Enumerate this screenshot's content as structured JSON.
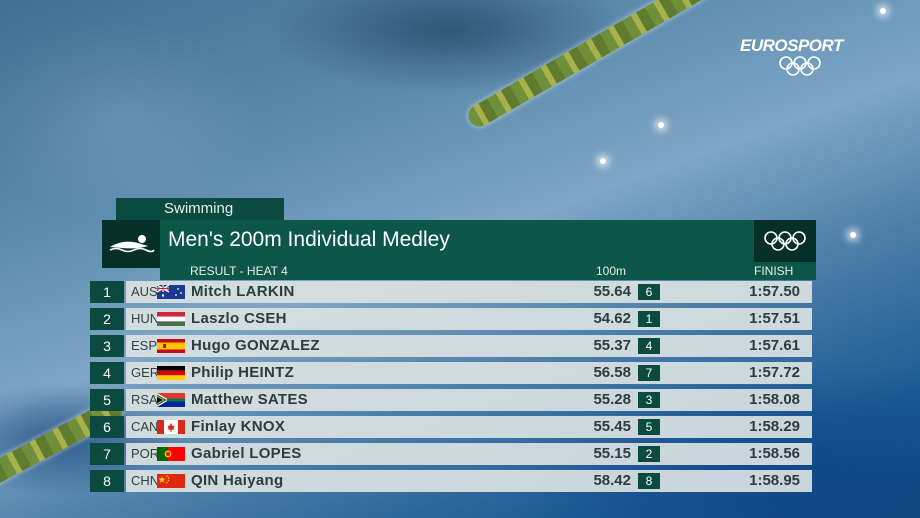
{
  "broadcaster": {
    "logo_text": "EUROSPORT"
  },
  "graphic": {
    "category": "Swimming",
    "title": "Men's 200m Individual Medley",
    "subtitle": "RESULT - HEAT 4",
    "split_header": "100m",
    "finish_header": "FINISH",
    "icons": [
      "swimmer-icon",
      "olympic-rings-icon"
    ]
  },
  "results": [
    {
      "rank": "1",
      "code": "AUS",
      "name": "Mitch LARKIN",
      "split": "55.64",
      "split_pos": "6",
      "finish": "1:57.50"
    },
    {
      "rank": "2",
      "code": "HUN",
      "name": "Laszlo CSEH",
      "split": "54.62",
      "split_pos": "1",
      "finish": "1:57.51"
    },
    {
      "rank": "3",
      "code": "ESP",
      "name": "Hugo GONZALEZ",
      "split": "55.37",
      "split_pos": "4",
      "finish": "1:57.61"
    },
    {
      "rank": "4",
      "code": "GER",
      "name": "Philip HEINTZ",
      "split": "56.58",
      "split_pos": "7",
      "finish": "1:57.72"
    },
    {
      "rank": "5",
      "code": "RSA",
      "name": "Matthew SATES",
      "split": "55.28",
      "split_pos": "3",
      "finish": "1:58.08"
    },
    {
      "rank": "6",
      "code": "CAN",
      "name": "Finlay KNOX",
      "split": "55.45",
      "split_pos": "5",
      "finish": "1:58.29"
    },
    {
      "rank": "7",
      "code": "POR",
      "name": "Gabriel LOPES",
      "split": "55.15",
      "split_pos": "2",
      "finish": "1:58.56"
    },
    {
      "rank": "8",
      "code": "CHN",
      "name": "QIN Haiyang",
      "split": "58.42",
      "split_pos": "8",
      "finish": "1:58.95"
    }
  ],
  "colors": {
    "panel_dark": "#062f27",
    "panel": "#0d5748",
    "strip": "#dae2e2",
    "accent_text": "#2d3d3e"
  }
}
